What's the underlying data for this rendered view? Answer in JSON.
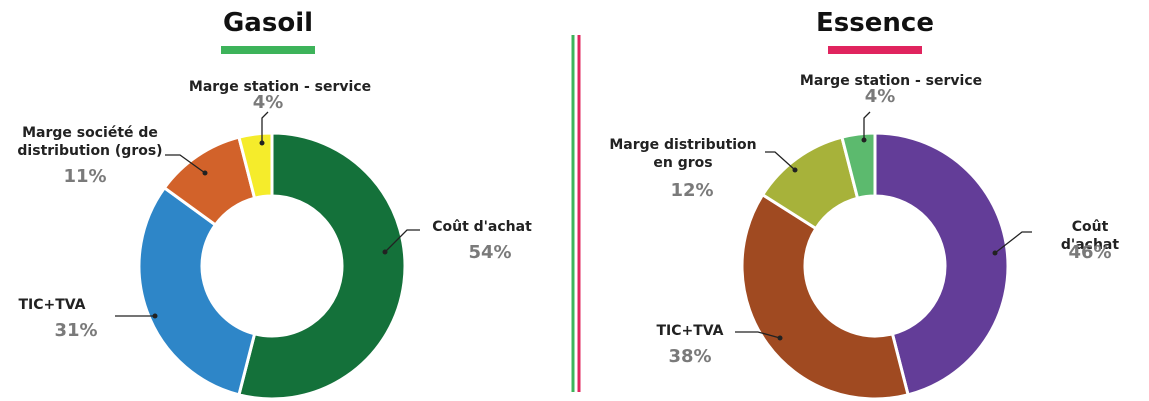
{
  "chart_data": [
    {
      "type": "pie",
      "title": "Gasoil",
      "title_underline_color": "#3db35a",
      "categories": [
        "Coût d'achat",
        "TIC+TVA",
        "Marge société de\ndistribution (gros)",
        "Marge station - service"
      ],
      "values": [
        54,
        31,
        11,
        4
      ],
      "value_labels": [
        "54%",
        "31%",
        "11%",
        "4%"
      ],
      "colors": [
        "#14713a",
        "#2e86c8",
        "#d2622a",
        "#f5ec2b"
      ]
    },
    {
      "type": "pie",
      "title": "Essence",
      "title_underline_color": "#e0245e",
      "categories": [
        "Coût d'achat",
        "TIC+TVA",
        "Marge distribution\nen gros",
        "Marge station - service"
      ],
      "values": [
        46,
        38,
        12,
        4
      ],
      "value_labels": [
        "46%",
        "38%",
        "12%",
        "4%"
      ],
      "colors": [
        "#633d98",
        "#a04a21",
        "#a7b23a",
        "#5cba6e"
      ]
    }
  ]
}
